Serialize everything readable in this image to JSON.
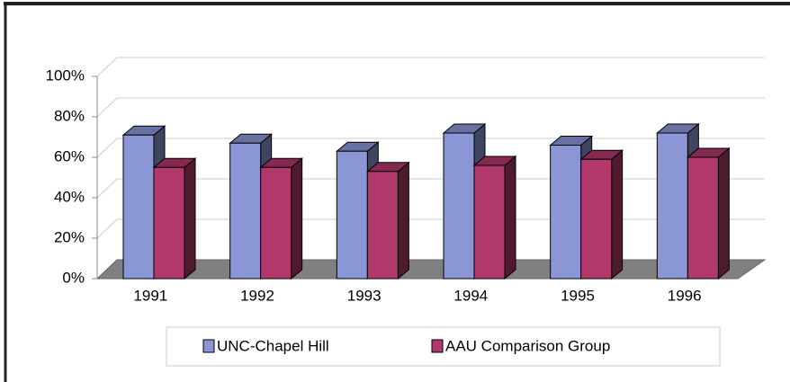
{
  "chart_data": {
    "type": "bar3d",
    "categories": [
      "1991",
      "1992",
      "1993",
      "1994",
      "1995",
      "1996"
    ],
    "series": [
      {
        "name": "UNC-Chapel Hill",
        "color": "#8b96d6",
        "values": [
          71,
          67,
          63,
          72,
          66,
          72
        ]
      },
      {
        "name": "AAU Comparison Group",
        "color": "#b0386a",
        "values": [
          55,
          55,
          53,
          56,
          59,
          60
        ]
      }
    ],
    "ylim": [
      0,
      100
    ],
    "yticks": [
      {
        "value": 0,
        "label": "0%"
      },
      {
        "value": 20,
        "label": "20%"
      },
      {
        "value": 40,
        "label": "40%"
      },
      {
        "value": 60,
        "label": "60%"
      },
      {
        "value": 80,
        "label": "80%"
      },
      {
        "value": 100,
        "label": "100%"
      }
    ],
    "grid": true
  }
}
